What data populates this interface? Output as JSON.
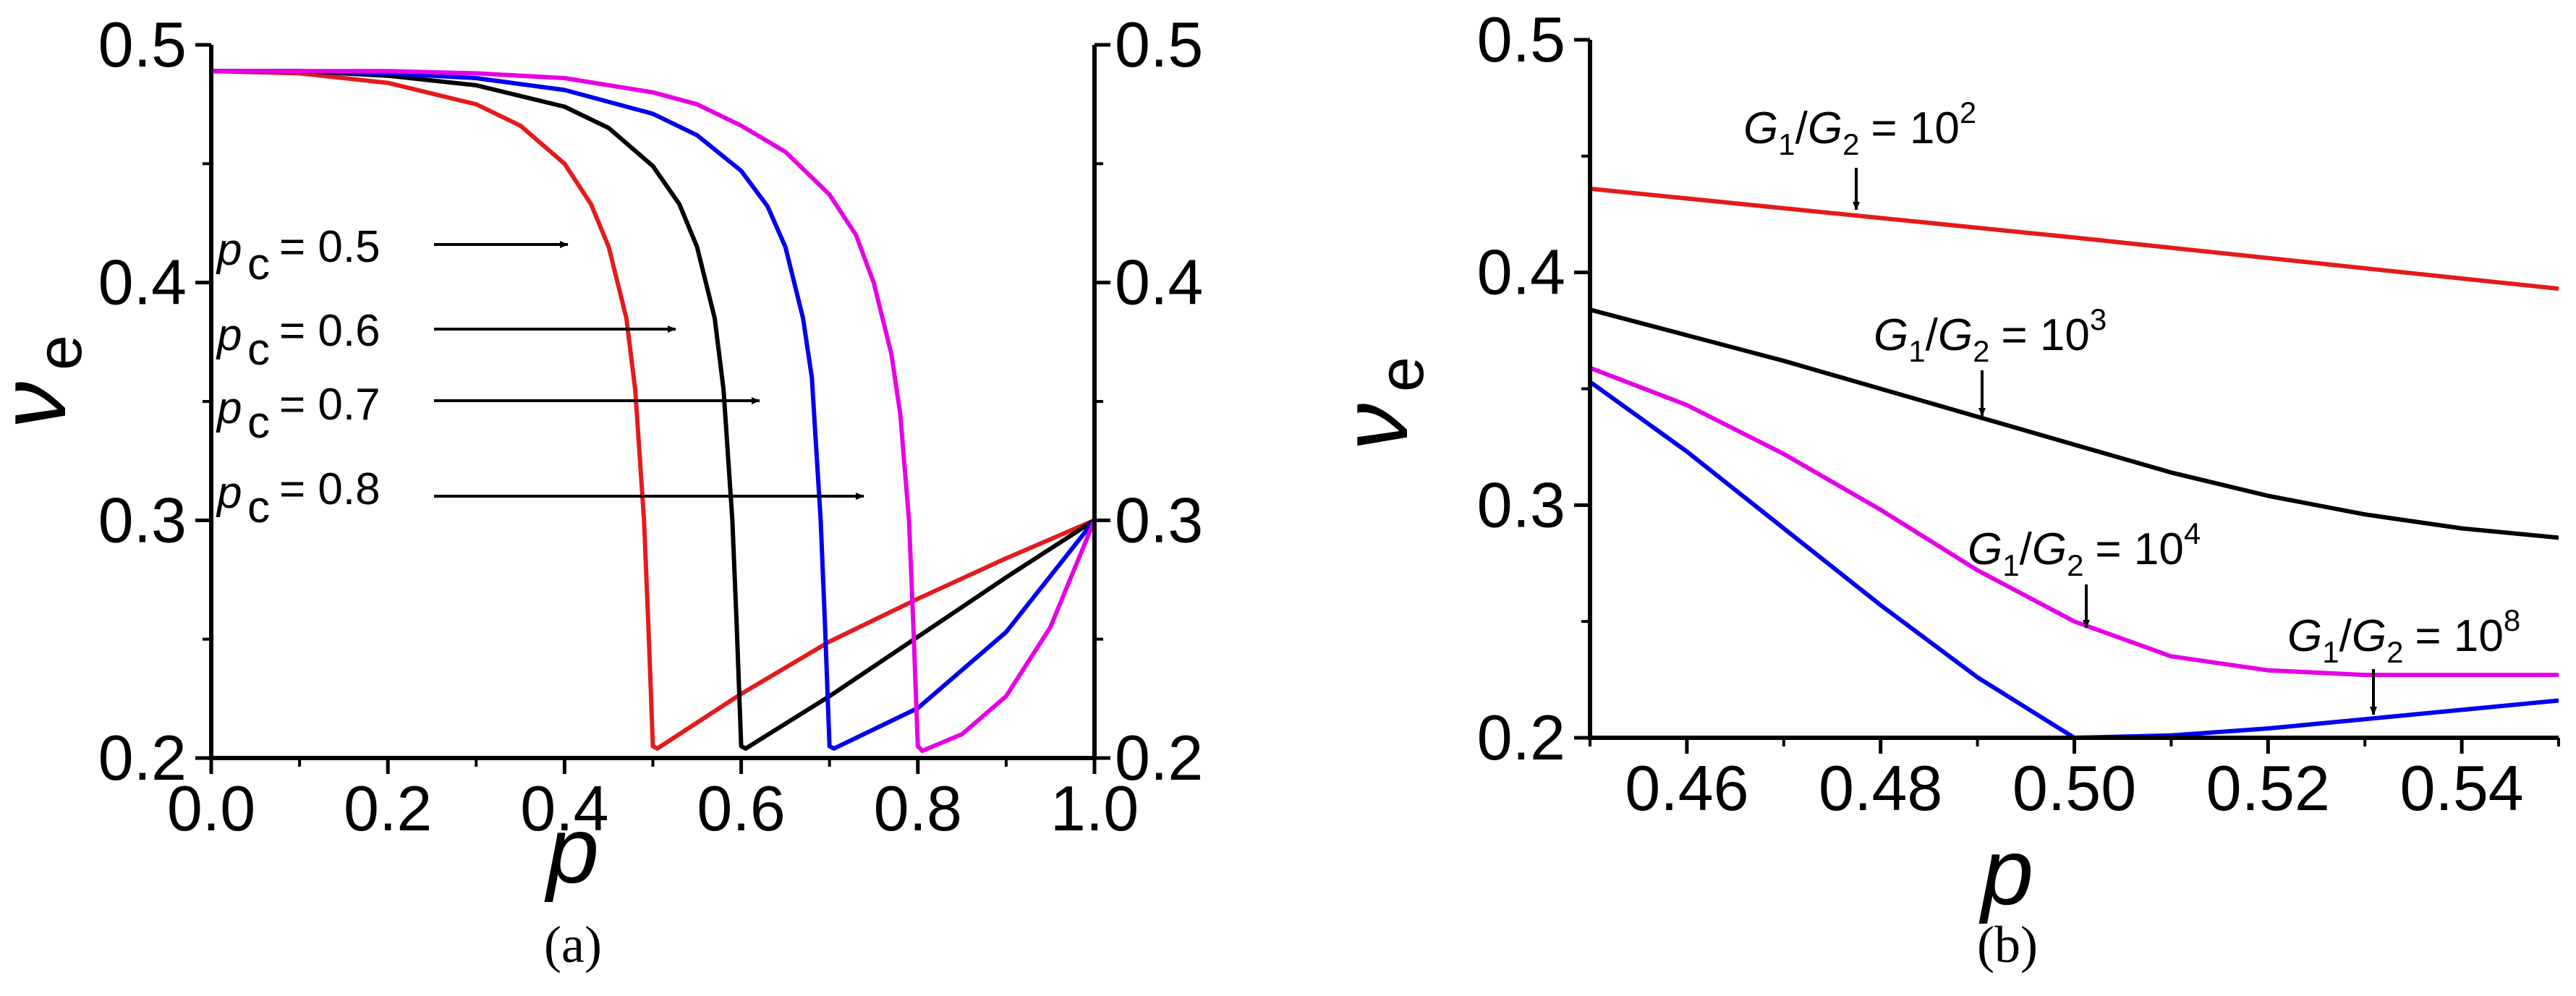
{
  "chart_data": [
    {
      "type": "line",
      "panel_label": "(a)",
      "xlabel": "p",
      "ylabel": "ν",
      "ylabel_sub": "e",
      "xlim": [
        0,
        1
      ],
      "ylim": [
        0.2,
        0.5
      ],
      "x_ticks": [
        0.0,
        0.2,
        0.4,
        0.6,
        0.8,
        1.0
      ],
      "x_tick_labels": [
        "0.0",
        "0.2",
        "0.4",
        "0.6",
        "0.8",
        "1.0"
      ],
      "y_ticks": [
        0.2,
        0.3,
        0.4,
        0.5
      ],
      "y_tick_labels": [
        "0.2",
        "0.3",
        "0.4",
        "0.5"
      ],
      "right_y_tick_labels": [
        "0.2",
        "0.3",
        "0.4",
        "0.5"
      ],
      "grid": false,
      "series": [
        {
          "color": "#e41a1c",
          "label_var": "p",
          "label_sub": "c",
          "label_value": "= 0.5",
          "pc": 0.5,
          "x": [
            0.0,
            0.1,
            0.2,
            0.3,
            0.35,
            0.4,
            0.43,
            0.45,
            0.47,
            0.48,
            0.49,
            0.495,
            0.5,
            0.505,
            0.6,
            0.7,
            0.8,
            0.9,
            1.0
          ],
          "y": [
            0.489,
            0.488,
            0.484,
            0.475,
            0.466,
            0.45,
            0.433,
            0.415,
            0.385,
            0.355,
            0.3,
            0.255,
            0.205,
            0.204,
            0.227,
            0.249,
            0.267,
            0.284,
            0.3
          ]
        },
        {
          "color": "#000000",
          "label_var": "p",
          "label_sub": "c",
          "label_value": "= 0.6",
          "pc": 0.6,
          "x": [
            0.0,
            0.1,
            0.2,
            0.3,
            0.4,
            0.45,
            0.5,
            0.53,
            0.55,
            0.57,
            0.58,
            0.59,
            0.595,
            0.6,
            0.605,
            0.7,
            0.8,
            0.9,
            1.0
          ],
          "y": [
            0.489,
            0.489,
            0.487,
            0.483,
            0.474,
            0.465,
            0.449,
            0.433,
            0.415,
            0.385,
            0.355,
            0.3,
            0.255,
            0.205,
            0.204,
            0.226,
            0.251,
            0.276,
            0.3
          ]
        },
        {
          "color": "#0000ee",
          "label_var": "p",
          "label_sub": "c",
          "label_value": "= 0.7",
          "pc": 0.7,
          "x": [
            0.0,
            0.1,
            0.2,
            0.3,
            0.4,
            0.5,
            0.55,
            0.6,
            0.63,
            0.65,
            0.67,
            0.68,
            0.69,
            0.695,
            0.7,
            0.705,
            0.8,
            0.9,
            1.0
          ],
          "y": [
            0.489,
            0.489,
            0.488,
            0.486,
            0.481,
            0.471,
            0.462,
            0.447,
            0.432,
            0.415,
            0.385,
            0.36,
            0.3,
            0.255,
            0.205,
            0.204,
            0.221,
            0.253,
            0.3
          ]
        },
        {
          "color": "#e600e6",
          "label_var": "p",
          "label_sub": "c",
          "label_value": "= 0.8",
          "pc": 0.8,
          "x": [
            0.0,
            0.1,
            0.2,
            0.3,
            0.4,
            0.5,
            0.55,
            0.6,
            0.65,
            0.7,
            0.73,
            0.75,
            0.77,
            0.78,
            0.79,
            0.795,
            0.8,
            0.805,
            0.85,
            0.9,
            0.95,
            1.0
          ],
          "y": [
            0.489,
            0.489,
            0.489,
            0.488,
            0.486,
            0.48,
            0.475,
            0.466,
            0.455,
            0.437,
            0.42,
            0.4,
            0.37,
            0.345,
            0.3,
            0.255,
            0.205,
            0.203,
            0.21,
            0.226,
            0.255,
            0.3
          ]
        }
      ]
    },
    {
      "type": "line",
      "panel_label": "(b)",
      "xlabel": "p",
      "ylabel": "ν",
      "ylabel_sub": "e",
      "xlim": [
        0.45,
        0.55
      ],
      "ylim": [
        0.2,
        0.5
      ],
      "x_ticks": [
        0.46,
        0.48,
        0.5,
        0.52,
        0.54
      ],
      "x_tick_labels": [
        "0.46",
        "0.48",
        "0.50",
        "0.52",
        "0.54"
      ],
      "y_ticks": [
        0.2,
        0.3,
        0.4,
        0.5
      ],
      "y_tick_labels": [
        "0.2",
        "0.3",
        "0.4",
        "0.5"
      ],
      "grid": false,
      "series": [
        {
          "color": "#e41a1c",
          "label_var1": "G",
          "label_sub1": "1",
          "label_var2": "G",
          "label_sub2": "2",
          "label_eq": "= 10",
          "label_exp": "2",
          "x": [
            0.45,
            0.5,
            0.55
          ],
          "y": [
            0.436,
            0.415,
            0.393
          ]
        },
        {
          "color": "#000000",
          "label_var1": "G",
          "label_sub1": "1",
          "label_var2": "G",
          "label_sub2": "2",
          "label_eq": "= 10",
          "label_exp": "3",
          "x": [
            0.45,
            0.46,
            0.47,
            0.48,
            0.49,
            0.5,
            0.51,
            0.52,
            0.53,
            0.54,
            0.55
          ],
          "y": [
            0.384,
            0.373,
            0.362,
            0.35,
            0.338,
            0.326,
            0.314,
            0.304,
            0.296,
            0.29,
            0.286
          ]
        },
        {
          "color": "#e600e6",
          "label_var1": "G",
          "label_sub1": "1",
          "label_var2": "G",
          "label_sub2": "2",
          "label_eq": "= 10",
          "label_exp": "4",
          "x": [
            0.45,
            0.46,
            0.47,
            0.48,
            0.49,
            0.5,
            0.51,
            0.52,
            0.53,
            0.54,
            0.55
          ],
          "y": [
            0.359,
            0.343,
            0.322,
            0.298,
            0.272,
            0.25,
            0.235,
            0.229,
            0.227,
            0.227,
            0.227
          ]
        },
        {
          "color": "#0000ee",
          "label_var1": "G",
          "label_sub1": "1",
          "label_var2": "G",
          "label_sub2": "2",
          "label_eq": "= 10",
          "label_exp": "8",
          "x": [
            0.45,
            0.46,
            0.47,
            0.48,
            0.49,
            0.5,
            0.51,
            0.52,
            0.53,
            0.54,
            0.55
          ],
          "y": [
            0.353,
            0.323,
            0.29,
            0.257,
            0.226,
            0.2,
            0.201,
            0.204,
            0.208,
            0.212,
            0.216
          ]
        }
      ]
    }
  ]
}
